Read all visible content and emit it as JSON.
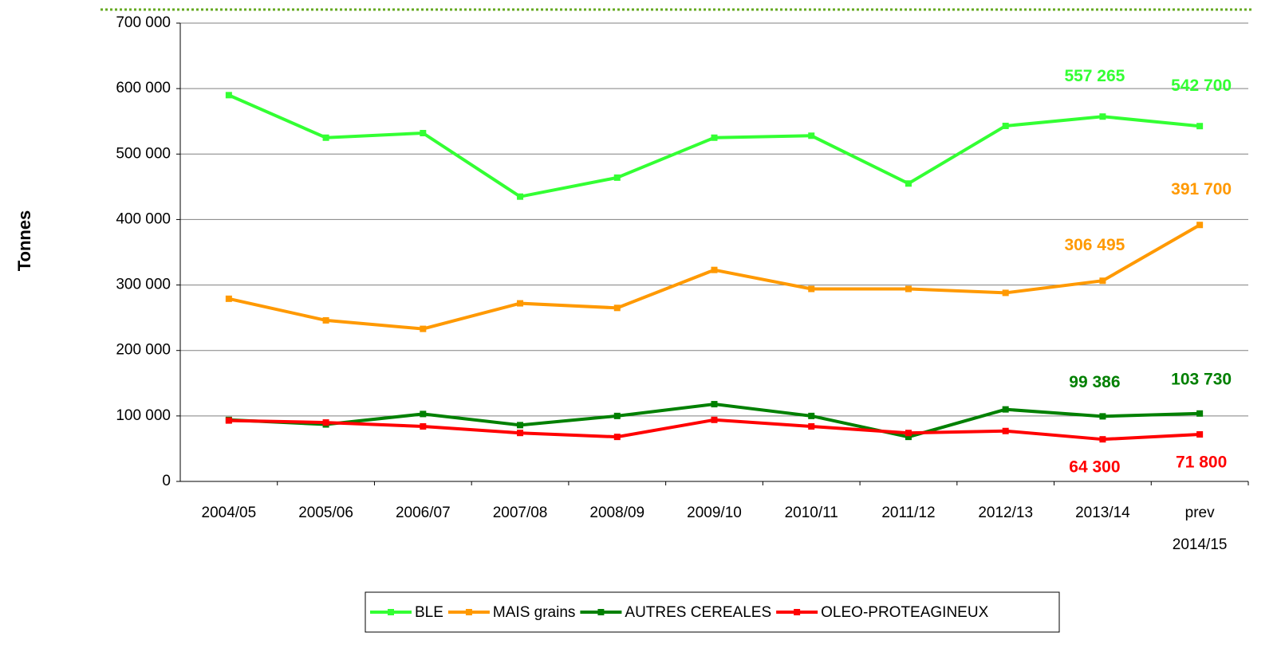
{
  "chart_data": {
    "type": "line",
    "y_label": "Tonnes",
    "categories": [
      "2004/05",
      "2005/06",
      "2006/07",
      "2007/08",
      "2008/09",
      "2009/10",
      "2010/11",
      "2011/12",
      "2012/13",
      "2013/14",
      "prev 2014/15"
    ],
    "series": [
      {
        "name": "BLE",
        "color": "#33ff33",
        "values": [
          590000,
          525000,
          532000,
          435000,
          464000,
          525000,
          528000,
          455000,
          543000,
          557265,
          542700
        ],
        "value_labels": [
          null,
          null,
          null,
          null,
          null,
          null,
          null,
          null,
          null,
          "557 265",
          "542 700"
        ]
      },
      {
        "name": "MAIS grains",
        "color": "#ff9900",
        "values": [
          279000,
          246000,
          233000,
          272000,
          265000,
          323000,
          294000,
          294000,
          288000,
          306495,
          391700
        ],
        "value_labels": [
          null,
          null,
          null,
          null,
          null,
          null,
          null,
          null,
          null,
          "306 495",
          "391 700"
        ]
      },
      {
        "name": "AUTRES CEREALES",
        "color": "#008000",
        "values": [
          94000,
          87000,
          103000,
          86000,
          100000,
          118000,
          100000,
          68000,
          110000,
          99386,
          103730
        ],
        "value_labels": [
          null,
          null,
          null,
          null,
          null,
          null,
          null,
          null,
          null,
          "99 386",
          "103 730"
        ]
      },
      {
        "name": "OLEO-PROTEAGINEUX",
        "color": "#ff0000",
        "values": [
          93000,
          90000,
          84000,
          74000,
          68000,
          94000,
          84000,
          74000,
          77000,
          64300,
          71800
        ],
        "value_labels": [
          null,
          null,
          null,
          null,
          null,
          null,
          null,
          null,
          null,
          "64 300",
          "71 800"
        ]
      }
    ],
    "ylim": [
      0,
      700000
    ],
    "yticks": [
      0,
      {
        "value": 100000,
        "label": "100 000"
      },
      {
        "value": 200000,
        "label": "200 000"
      },
      {
        "value": 300000,
        "label": "300 000"
      },
      {
        "value": 400000,
        "label": "400 000"
      },
      {
        "value": 500000,
        "label": "500 000"
      },
      {
        "value": 600000,
        "label": "600 000"
      },
      {
        "value": 700000,
        "label": "700 000"
      }
    ],
    "grid": true,
    "legend": "bottom"
  }
}
